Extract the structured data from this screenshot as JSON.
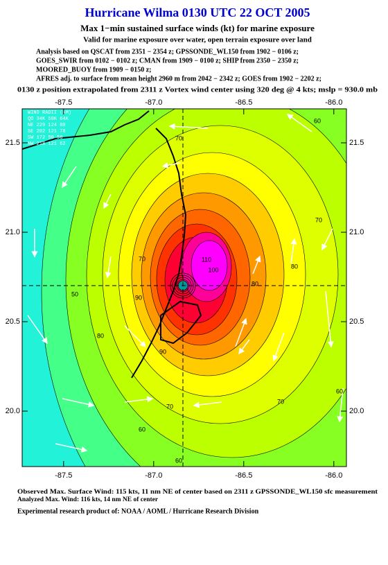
{
  "header": {
    "title": "Hurricane Wilma 0130 UTC 22 OCT 2005",
    "subtitle": "Max 1−min sustained surface winds (kt) for marine exposure",
    "validity": "Valid for marine exposure over water, open terrain exposure over land",
    "analysis_lines": [
      "Analysis based on  QSCAT from 2351 − 2354 z;  GPSSONDE_WL150 from 1902 − 0106 z;",
      "GOES_SWIR from 0102 − 0102 z;  CMAN from 1909 − 0100 z;  SHIP from 2350 − 2350 z;",
      "MOORED_BUOY from 1909 − 0150 z;",
      "AFRES adj. to surface from mean height 2960 m from 2042 − 2342 z;  GOES from 1902 − 2202 z;"
    ],
    "position_line": "0130 z position extrapolated from 2311 z Vortex wind center using 320 deg @ 4 kts; mslp = 930.0 mb"
  },
  "map": {
    "xlim": [
      -87.73,
      -85.93
    ],
    "ylim": [
      19.69,
      21.69
    ],
    "xticks": [
      -87.5,
      {
        "value": -87.0,
        "label": "-87.0"
      },
      -86.5,
      {
        "value": -86.0,
        "label": "-86.0"
      }
    ],
    "yticks": [
      {
        "value": 20.0,
        "label": "20.0"
      },
      20.5,
      {
        "value": 21.0,
        "label": "21.0"
      },
      21.5
    ],
    "contour_labels": [
      50,
      60,
      70,
      80,
      90,
      100,
      110,
      60,
      70,
      80,
      60,
      70,
      70,
      80,
      90,
      60,
      70
    ],
    "wind_radii": {
      "title": "WIND RADII (NM)",
      "header": "QD  34K  50K  64K",
      "rows": [
        "NE  229  124   80",
        "SE  202  121   78",
        "SW  172   90   56",
        "NW  218  121   62"
      ]
    }
  },
  "footer": {
    "lines": [
      "Observed Max. Surface Wind: 115 kts, 11 nm NE of center based on 2311 z GPSSONDE_WL150 sfc measurement",
      "Analyzed Max. Wind: 116 kts, 14 nm NE of center",
      "Experimental research product of:  NOAA / AOML / Hurricane Research Division"
    ]
  }
}
